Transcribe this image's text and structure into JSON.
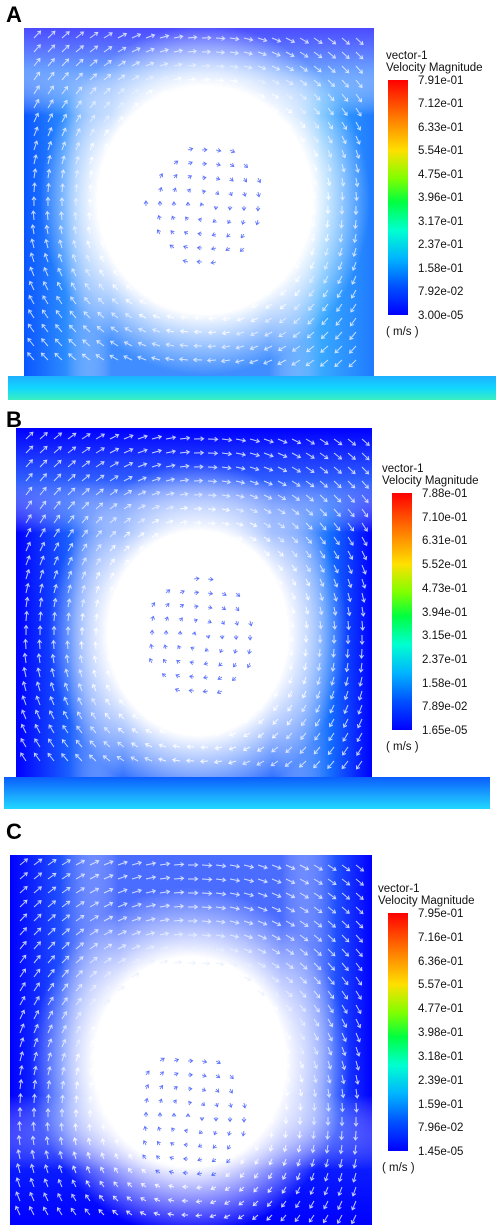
{
  "panels": [
    {
      "label": "A",
      "legend_title": "vector-1",
      "legend_subtitle": "Velocity Magnitude",
      "ticks": [
        "7.91e-01",
        "7.12e-01",
        "6.33e-01",
        "5.54e-01",
        "4.75e-01",
        "3.96e-01",
        "3.17e-01",
        "2.37e-01",
        "1.58e-01",
        "7.92e-02",
        "3.00e-05"
      ],
      "unit": "( m/s )"
    },
    {
      "label": "B",
      "legend_title": "vector-1",
      "legend_subtitle": "Velocity Magnitude",
      "ticks": [
        "7.88e-01",
        "7.10e-01",
        "6.31e-01",
        "5.52e-01",
        "4.73e-01",
        "3.94e-01",
        "3.15e-01",
        "2.37e-01",
        "1.58e-01",
        "7.89e-02",
        "1.65e-05"
      ],
      "unit": "( m/s )"
    },
    {
      "label": "C",
      "legend_title": "vector-1",
      "legend_subtitle": "Velocity Magnitude",
      "ticks": [
        "7.95e-01",
        "7.16e-01",
        "6.36e-01",
        "5.57e-01",
        "4.77e-01",
        "3.98e-01",
        "3.18e-01",
        "2.39e-01",
        "1.59e-01",
        "7.96e-02",
        "1.45e-05"
      ],
      "unit": "( m/s )"
    }
  ],
  "colors": {
    "vector_low": "#0000ff",
    "vector_mid": "#00b4ff",
    "vector_high": "#00ff80",
    "arrow_fill": "#ffffff"
  }
}
